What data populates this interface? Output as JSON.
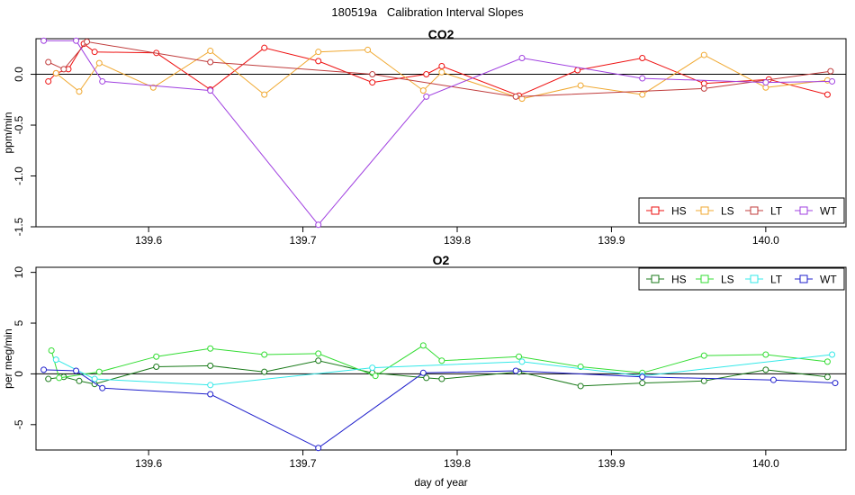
{
  "page_title": "180519a   Calibration Interval Slopes",
  "chart_data": [
    {
      "type": "line",
      "title": "CO2",
      "xlabel": "",
      "ylabel": "ppm/min",
      "xlim": [
        139.527,
        140.052
      ],
      "ylim": [
        -1.5,
        0.35
      ],
      "xticks": [
        139.6,
        139.7,
        139.8,
        139.9,
        140.0
      ],
      "xtick_labels": [
        "139.6",
        "139.7",
        "139.8",
        "139.9",
        "140.0"
      ],
      "yticks": [
        0.0,
        -0.5,
        -1.0,
        -1.5
      ],
      "ytick_labels": [
        "0.0",
        "-0.5",
        "-1.0",
        "-1.5"
      ],
      "zero_line": true,
      "legend": {
        "position": "bottom-right",
        "labels": [
          "HS",
          "LS",
          "LT",
          "WT"
        ]
      },
      "series": [
        {
          "name": "HS",
          "color": "#ee1111",
          "points": [
            [
              139.535,
              -0.07
            ],
            [
              139.54,
              0.01
            ],
            [
              139.548,
              0.05
            ],
            [
              139.558,
              0.3
            ],
            [
              139.565,
              0.22
            ],
            [
              139.605,
              0.21
            ],
            [
              139.64,
              -0.15
            ],
            [
              139.675,
              0.26
            ],
            [
              139.71,
              0.13
            ],
            [
              139.745,
              -0.08
            ],
            [
              139.78,
              0.0
            ],
            [
              139.79,
              0.08
            ],
            [
              139.84,
              -0.21
            ],
            [
              139.878,
              0.04
            ],
            [
              139.92,
              0.16
            ],
            [
              139.96,
              -0.09
            ],
            [
              140.002,
              -0.05
            ],
            [
              140.04,
              -0.2
            ]
          ]
        },
        {
          "name": "LS",
          "color": "#f0a830",
          "points": [
            [
              139.54,
              0.01
            ],
            [
              139.555,
              -0.17
            ],
            [
              139.568,
              0.11
            ],
            [
              139.603,
              -0.13
            ],
            [
              139.64,
              0.23
            ],
            [
              139.675,
              -0.2
            ],
            [
              139.71,
              0.22
            ],
            [
              139.742,
              0.24
            ],
            [
              139.778,
              -0.16
            ],
            [
              139.79,
              0.02
            ],
            [
              139.842,
              -0.24
            ],
            [
              139.88,
              -0.11
            ],
            [
              139.92,
              -0.2
            ],
            [
              139.96,
              0.19
            ],
            [
              140.0,
              -0.13
            ],
            [
              140.04,
              -0.06
            ]
          ]
        },
        {
          "name": "LT",
          "color": "#c03c3c",
          "points": [
            [
              139.535,
              0.12
            ],
            [
              139.545,
              0.05
            ],
            [
              139.56,
              0.32
            ],
            [
              139.64,
              0.12
            ],
            [
              139.745,
              0.0
            ],
            [
              139.838,
              -0.22
            ],
            [
              139.96,
              -0.14
            ],
            [
              140.042,
              0.03
            ]
          ]
        },
        {
          "name": "WT",
          "color": "#a040e0",
          "points": [
            [
              139.532,
              0.33
            ],
            [
              139.553,
              0.33
            ],
            [
              139.57,
              -0.07
            ],
            [
              139.64,
              -0.16
            ],
            [
              139.71,
              -1.48
            ],
            [
              139.78,
              -0.22
            ],
            [
              139.842,
              0.16
            ],
            [
              139.92,
              -0.04
            ],
            [
              140.0,
              -0.08
            ],
            [
              140.043,
              -0.07
            ]
          ]
        }
      ]
    },
    {
      "type": "line",
      "title": "O2",
      "xlabel": "day of year",
      "ylabel": "per meg/min",
      "xlim": [
        139.527,
        140.052
      ],
      "ylim": [
        -7.5,
        10.5
      ],
      "xticks": [
        139.6,
        139.7,
        139.8,
        139.9,
        140.0
      ],
      "xtick_labels": [
        "139.6",
        "139.7",
        "139.8",
        "139.9",
        "140.0"
      ],
      "yticks": [
        -5,
        0,
        5,
        10
      ],
      "ytick_labels": [
        "-5",
        "0",
        "5",
        "10"
      ],
      "zero_line": true,
      "legend": {
        "position": "top-right",
        "labels": [
          "HS",
          "LS",
          "LT",
          "WT"
        ]
      },
      "series": [
        {
          "name": "HS",
          "color": "#1a7a1a",
          "points": [
            [
              139.535,
              -0.5
            ],
            [
              139.545,
              -0.3
            ],
            [
              139.555,
              -0.7
            ],
            [
              139.565,
              -1.0
            ],
            [
              139.605,
              0.7
            ],
            [
              139.64,
              0.8
            ],
            [
              139.675,
              0.2
            ],
            [
              139.71,
              1.3
            ],
            [
              139.745,
              0.1
            ],
            [
              139.78,
              -0.4
            ],
            [
              139.79,
              -0.5
            ],
            [
              139.84,
              0.2
            ],
            [
              139.88,
              -1.2
            ],
            [
              139.92,
              -0.9
            ],
            [
              139.96,
              -0.7
            ],
            [
              140.0,
              0.4
            ],
            [
              140.04,
              -0.3
            ]
          ]
        },
        {
          "name": "LS",
          "color": "#33dd33",
          "points": [
            [
              139.537,
              2.3
            ],
            [
              139.542,
              -0.4
            ],
            [
              139.568,
              0.2
            ],
            [
              139.605,
              1.7
            ],
            [
              139.64,
              2.5
            ],
            [
              139.675,
              1.9
            ],
            [
              139.71,
              2.0
            ],
            [
              139.747,
              -0.2
            ],
            [
              139.778,
              2.8
            ],
            [
              139.79,
              1.3
            ],
            [
              139.84,
              1.7
            ],
            [
              139.88,
              0.7
            ],
            [
              139.92,
              0.1
            ],
            [
              139.96,
              1.8
            ],
            [
              140.0,
              1.9
            ],
            [
              140.04,
              1.2
            ]
          ]
        },
        {
          "name": "LT",
          "color": "#33e8e8",
          "points": [
            [
              139.54,
              1.4
            ],
            [
              139.565,
              -0.5
            ],
            [
              139.64,
              -1.1
            ],
            [
              139.745,
              0.6
            ],
            [
              139.842,
              1.2
            ],
            [
              139.92,
              -0.2
            ],
            [
              140.043,
              1.9
            ]
          ]
        },
        {
          "name": "WT",
          "color": "#2020cc",
          "points": [
            [
              139.532,
              0.4
            ],
            [
              139.553,
              0.3
            ],
            [
              139.57,
              -1.4
            ],
            [
              139.64,
              -2.0
            ],
            [
              139.71,
              -7.3
            ],
            [
              139.778,
              0.1
            ],
            [
              139.838,
              0.3
            ],
            [
              139.92,
              -0.3
            ],
            [
              140.005,
              -0.6
            ],
            [
              140.045,
              -0.9
            ]
          ]
        }
      ]
    }
  ]
}
